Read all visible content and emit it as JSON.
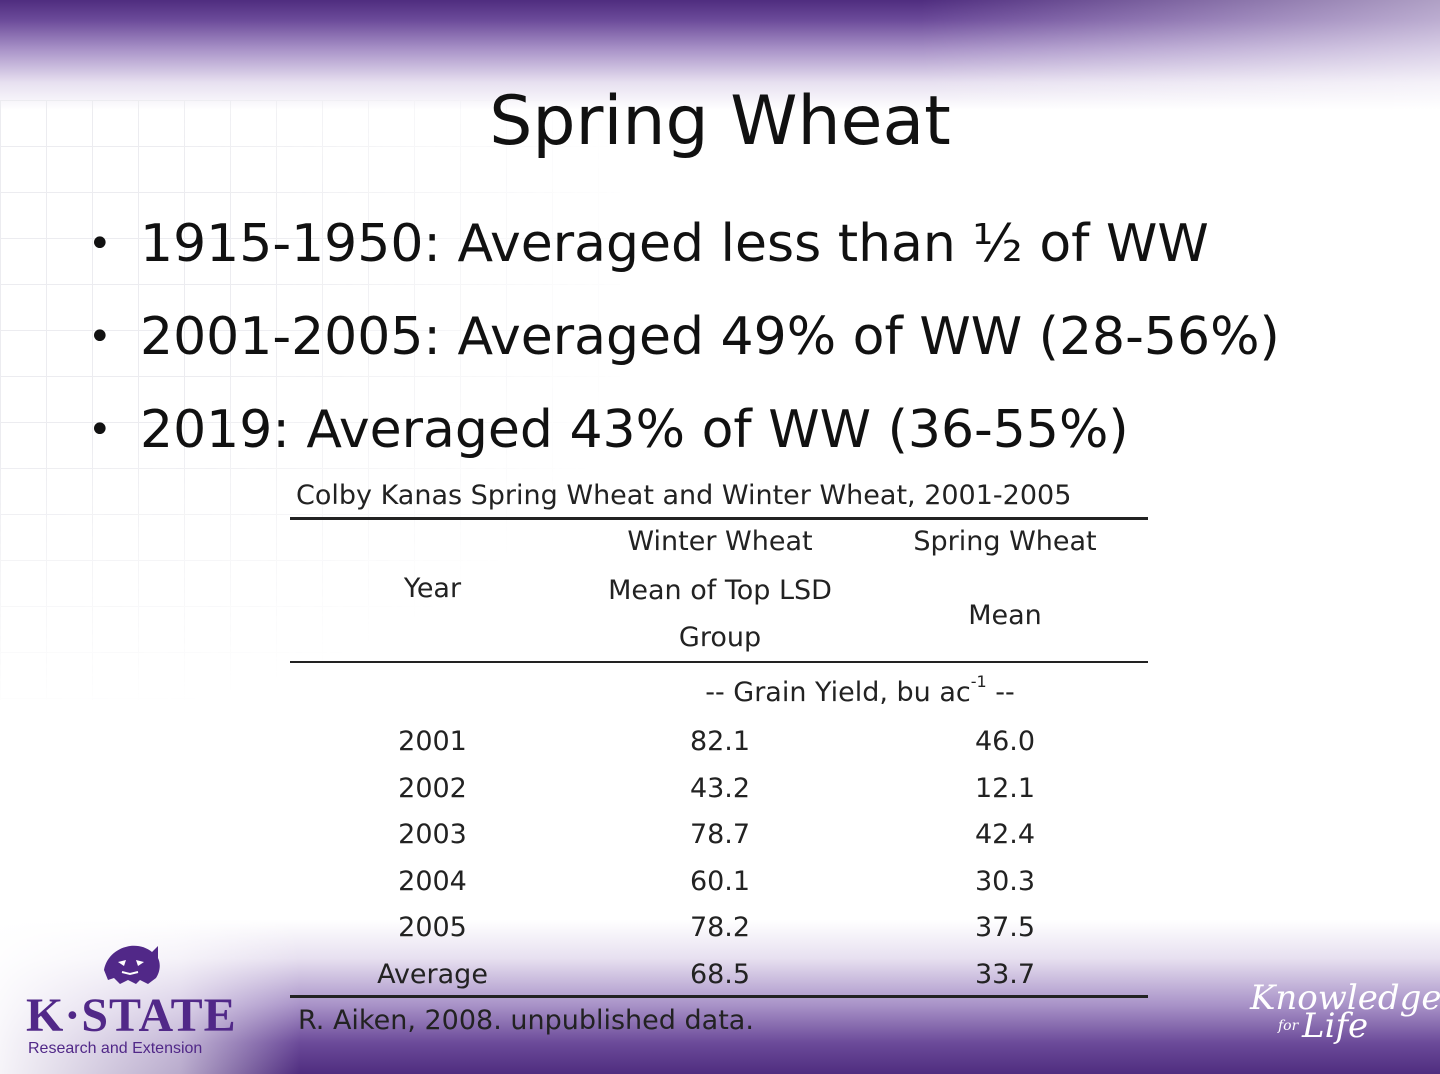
{
  "slide": {
    "title": "Spring Wheat",
    "bullets": [
      "1915-1950: Averaged less than ½ of WW",
      "2001-2005: Averaged 49% of WW (28-56%)",
      "2019: Averaged 43% of WW (36-55%)"
    ]
  },
  "table": {
    "caption": "Colby Kanas Spring Wheat and Winter Wheat, 2001-2005",
    "headers": {
      "year": "Year",
      "ww_line1": "Winter Wheat",
      "ww_line2": "Mean of Top LSD",
      "ww_line3": "Group",
      "sw_line1": "Spring Wheat",
      "sw_line2": "Mean"
    },
    "units": {
      "text": "-- Grain Yield, bu ac",
      "superscript": "-1",
      "suffix": " --"
    },
    "rows": [
      {
        "year": "2001",
        "ww": "82.1",
        "sw": "46.0"
      },
      {
        "year": "2002",
        "ww": "43.2",
        "sw": "12.1"
      },
      {
        "year": "2003",
        "ww": "78.7",
        "sw": "42.4"
      },
      {
        "year": "2004",
        "ww": "60.1",
        "sw": "30.3"
      },
      {
        "year": "2005",
        "ww": "78.2",
        "sw": "37.5"
      },
      {
        "year": "Average",
        "ww": "68.5",
        "sw": "33.7"
      }
    ],
    "source": "R. Aiken, 2008. unpublished data."
  },
  "branding": {
    "logo_text": "K·STATE",
    "logo_subtext": "Research and Extension",
    "tagline_knowledge": "Knowledge",
    "tagline_for": "for",
    "tagline_life": "Life",
    "brand_color": "#512888"
  }
}
